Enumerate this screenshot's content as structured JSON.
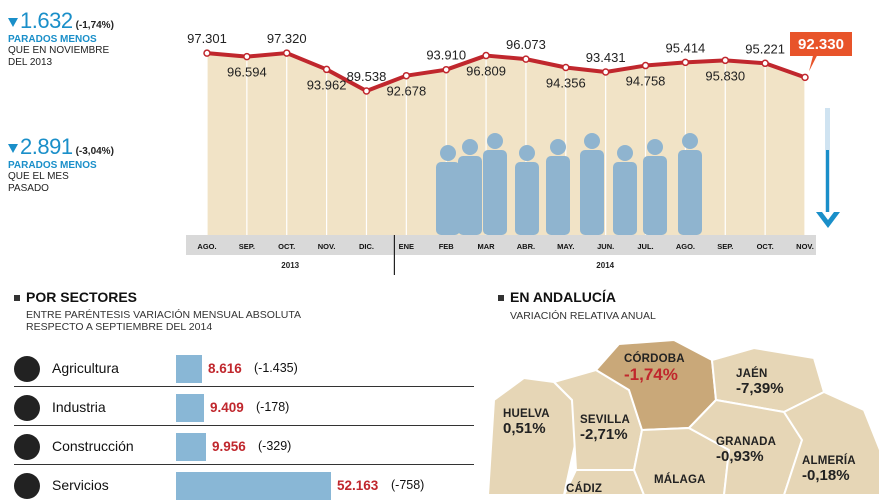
{
  "summary": {
    "monthly_change": {
      "value": "1.632",
      "pct": "(-1,74%)",
      "label_blue": "PARADOS MENOS",
      "label_black": [
        "QUE EN NOVIEMBRE",
        "DEL 2013"
      ]
    },
    "last_month_change": {
      "value": "2.891",
      "pct": "(-3,04%)",
      "label_blue": "PARADOS MENOS",
      "label_black": [
        "QUE EL MES",
        "PASADO"
      ]
    }
  },
  "colors": {
    "accent_blue": "#1a8fc9",
    "line_red": "#c0272d",
    "area_fill": "#f1e3c6",
    "highlight_orange": "#e8542a",
    "bar_blue": "#89b7d6",
    "map_fill": "#e6d6b6",
    "map_highlight": "#c9a879"
  },
  "chart_data": {
    "type": "line",
    "categories": [
      "AGO.",
      "SEP.",
      "OCT.",
      "NOV.",
      "DIC.",
      "ENE",
      "FEB",
      "MAR",
      "ABR.",
      "MAY.",
      "JUN.",
      "JUL.",
      "AGO.",
      "SEP.",
      "OCT.",
      "NOV."
    ],
    "year_labels": [
      "2013",
      "2014"
    ],
    "values": [
      97301,
      96594,
      97320,
      93962,
      89538,
      92678,
      93910,
      96809,
      96073,
      94356,
      93431,
      94758,
      95414,
      95830,
      95221,
      92330
    ],
    "value_labels": [
      "97.301",
      "96.594",
      "97.320",
      "93.962",
      "89.538",
      "92.678",
      "93.910",
      "96.809",
      "96.073",
      "94.356",
      "93.431",
      "94.758",
      "95.414",
      "95.830",
      "95.221",
      "92.330"
    ],
    "ylim": [
      60000,
      100000
    ],
    "highlight_index": 15
  },
  "sectors": {
    "title": "POR SECTORES",
    "subtitle": [
      "ENTRE PARÉNTESIS VARIACIÓN MENSUAL ABSOLUTA",
      "RESPECTO A SEPTIEMBRE DEL 2014"
    ],
    "items": [
      {
        "name": "Agricultura",
        "value": 8616,
        "value_label": "8.616",
        "change": "(-1.435)",
        "icon": "tractor-icon"
      },
      {
        "name": "Industria",
        "value": 9409,
        "value_label": "9.409",
        "change": "(-178)",
        "icon": "factory-icon"
      },
      {
        "name": "Construcción",
        "value": 9956,
        "value_label": "9.956",
        "change": "(-329)",
        "icon": "crane-icon"
      },
      {
        "name": "Servicios",
        "value": 52163,
        "value_label": "52.163",
        "change": "(-758)",
        "icon": "truck-icon"
      }
    ]
  },
  "andalucia": {
    "title": "EN ANDALUCÍA",
    "subtitle": "VARIACIÓN RELATIVA ANUAL",
    "provinces": [
      {
        "name": "CÓRDOBA",
        "value": "-1,74%",
        "highlight": true
      },
      {
        "name": "JAÉN",
        "value": "-7,39%"
      },
      {
        "name": "HUELVA",
        "value": "0,51%"
      },
      {
        "name": "SEVILLA",
        "value": "-2,71%"
      },
      {
        "name": "GRANADA",
        "value": "-0,93%"
      },
      {
        "name": "ALMERÍA",
        "value": "-0,18%"
      },
      {
        "name": "MÁLAGA",
        "value": ""
      },
      {
        "name": "CÁDIZ",
        "value": ""
      }
    ]
  }
}
